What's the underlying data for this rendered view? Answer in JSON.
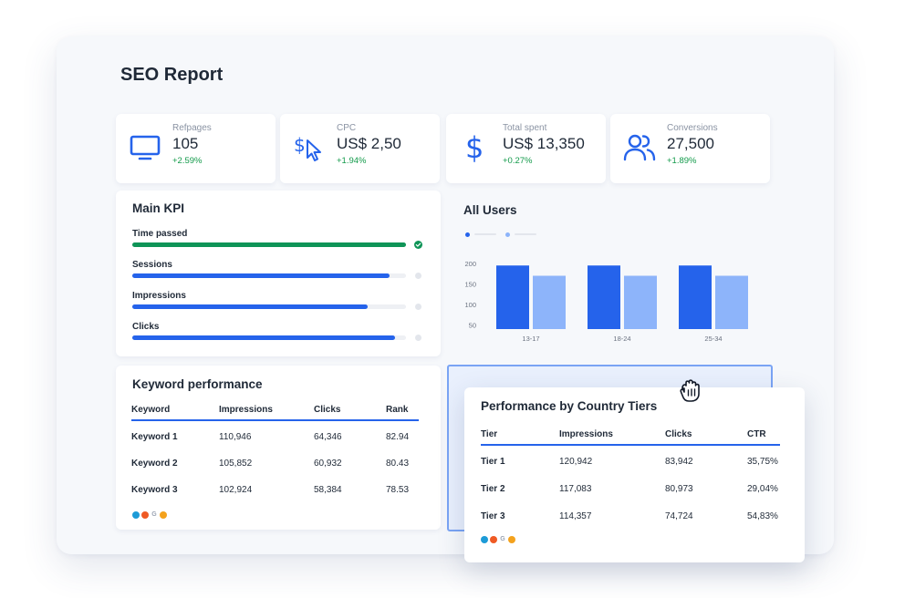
{
  "page": {
    "title": "SEO Report"
  },
  "stats": [
    {
      "label": "Refpages",
      "value": "105",
      "change": "+2.59%",
      "icon": "monitor-icon"
    },
    {
      "label": "CPC",
      "value": "US$ 2,50",
      "change": "+1.94%",
      "icon": "dollar-cursor-icon"
    },
    {
      "label": "Total spent",
      "value": "US$ 13,350",
      "change": "+0.27%",
      "icon": "dollar-icon"
    },
    {
      "label": "Conversions",
      "value": "27,500",
      "change": "+1.89%",
      "icon": "users-icon"
    }
  ],
  "main_kpi": {
    "title": "Main KPI",
    "items": [
      {
        "label": "Time passed",
        "progress": 1.0,
        "color": "#0f9457",
        "complete": true
      },
      {
        "label": "Sessions",
        "progress": 0.94,
        "color": "#2563eb",
        "complete": false
      },
      {
        "label": "Impressions",
        "progress": 0.86,
        "color": "#2563eb",
        "complete": false
      },
      {
        "label": "Clicks",
        "progress": 0.96,
        "color": "#2563eb",
        "complete": false
      }
    ]
  },
  "chart_data": {
    "type": "bar",
    "title": "All Users",
    "categories": [
      "13-17",
      "18-24",
      "25-34"
    ],
    "series": [
      {
        "values": [
          195,
          195,
          195
        ],
        "color": "#2563eb"
      },
      {
        "values": [
          170,
          170,
          170
        ],
        "color": "#8db4fa"
      }
    ],
    "yticks": [
      200,
      150,
      100,
      50
    ],
    "ylim": [
      40,
      200
    ],
    "xlabel": "",
    "ylabel": "",
    "grid": false,
    "legend": "top-left"
  },
  "keyword_performance": {
    "title": "Keyword performance",
    "headers": [
      "Keyword",
      "Impressions",
      "Clicks",
      "Rank"
    ],
    "rows": [
      [
        "Keyword 1",
        "110,946",
        "64,346",
        "82.94"
      ],
      [
        "Keyword 2",
        "105,852",
        "60,932",
        "80.43"
      ],
      [
        "Keyword 3",
        "102,924",
        "58,384",
        "78.53"
      ]
    ]
  },
  "country_tiers": {
    "title": "Performance by Country Tiers",
    "headers": [
      "Tier",
      "Impressions",
      "Clicks",
      "CTR"
    ],
    "rows": [
      [
        "Tier 1",
        "120,942",
        "83,942",
        "35,75%"
      ],
      [
        "Tier 2",
        "117,083",
        "80,973",
        "29,04%"
      ],
      [
        "Tier 3",
        "114,357",
        "74,724",
        "54,83%"
      ]
    ]
  },
  "data_sources": {
    "icons": [
      "semrush-icon",
      "ahrefs-icon",
      "google-icon",
      "bing-icon"
    ],
    "colors": [
      "#1d9bd7",
      "#ef5a24",
      "#9aa3b2",
      "#f4a21d"
    ],
    "glyphs": [
      "",
      "",
      "G",
      ""
    ]
  },
  "colors": {
    "accent": "#2563eb",
    "accent_light": "#8db4fa",
    "positive": "#129a4a",
    "complete": "#0f9457"
  }
}
